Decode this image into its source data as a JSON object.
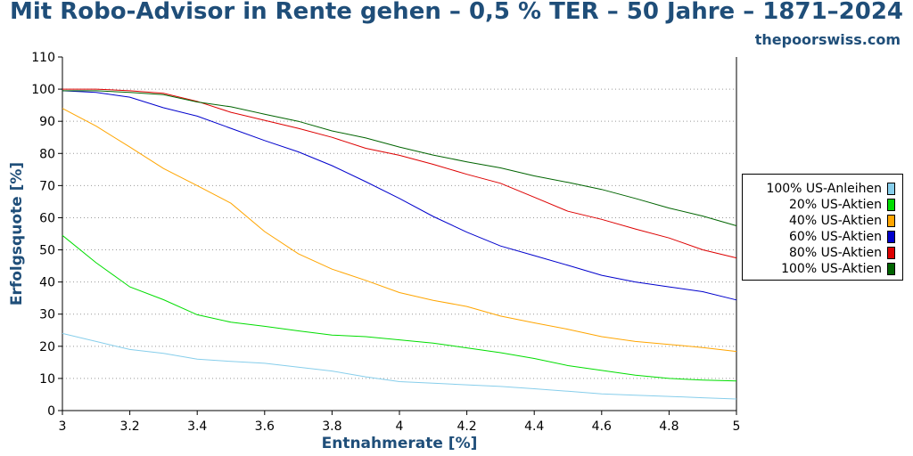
{
  "header": {
    "title": "Mit Robo-Advisor in Rente gehen – 0,5 % TER – 50 Jahre – 1871–2024",
    "site": "thepoorswiss.com"
  },
  "chart_data": {
    "type": "line",
    "title": "Mit Robo-Advisor in Rente gehen – 0,5 % TER – 50 Jahre – 1871–2024",
    "xlabel": "Entnahmerate [%]",
    "ylabel": "Erfolgsquote [%]",
    "xlim": [
      3,
      5
    ],
    "ylim": [
      0,
      110
    ],
    "grid": "horizontal-dotted",
    "legend_position": "right",
    "x_ticks": [
      "3",
      "3.2",
      "3.4",
      "3.6",
      "3.8",
      "4",
      "4.2",
      "4.4",
      "4.6",
      "4.8",
      "5"
    ],
    "y_ticks": [
      "0",
      "10",
      "20",
      "30",
      "40",
      "50",
      "60",
      "70",
      "80",
      "90",
      "100",
      "110"
    ],
    "x": [
      3.0,
      3.1,
      3.2,
      3.3,
      3.4,
      3.5,
      3.6,
      3.7,
      3.8,
      3.9,
      4.0,
      4.1,
      4.2,
      4.3,
      4.4,
      4.5,
      4.6,
      4.7,
      4.8,
      4.9,
      5.0
    ],
    "series": [
      {
        "name": "100% US-Anleihen",
        "color": "#87ceeb",
        "values": [
          24,
          21.5,
          19,
          17.8,
          16,
          15.3,
          14.7,
          13.5,
          12.3,
          10.5,
          9,
          8.5,
          8,
          7.5,
          6.8,
          6,
          5.2,
          4.8,
          4.4,
          4,
          3.6
        ]
      },
      {
        "name": "20% US-Aktien",
        "color": "#00dd00",
        "values": [
          54.5,
          46,
          38.5,
          34.5,
          29.8,
          27.5,
          26.2,
          24.8,
          23.5,
          23,
          22,
          21,
          19.5,
          18,
          16.2,
          14,
          12.5,
          11,
          10,
          9.5,
          9.2
        ]
      },
      {
        "name": "40% US-Aktien",
        "color": "#ffa500",
        "values": [
          94,
          88.5,
          82,
          75.3,
          70,
          64.5,
          55.7,
          48.8,
          44,
          40.5,
          36.7,
          34.3,
          32.4,
          29.4,
          27.3,
          25.3,
          23,
          21.5,
          20.6,
          19.6,
          18.4
        ]
      },
      {
        "name": "60% US-Aktien",
        "color": "#0000cc",
        "values": [
          99.5,
          99,
          97.5,
          94.2,
          91.6,
          87.8,
          84,
          80.5,
          76.2,
          71.2,
          66,
          60.4,
          55.5,
          51.2,
          48.2,
          45.2,
          42.1,
          40,
          38.5,
          37,
          34.4
        ]
      },
      {
        "name": "80% US-Aktien",
        "color": "#dd0000",
        "values": [
          100,
          100,
          99.5,
          98.7,
          96.2,
          92.8,
          90.3,
          87.8,
          85,
          81.6,
          79.4,
          76.6,
          73.5,
          70.7,
          66.4,
          62,
          59.5,
          56.5,
          53.7,
          50,
          47.5
        ]
      },
      {
        "name": "100% US-Aktien",
        "color": "#006400",
        "values": [
          99.5,
          99.5,
          99,
          98.3,
          96,
          94.5,
          92.2,
          90,
          87,
          84.8,
          82,
          79.5,
          77.4,
          75.5,
          73,
          71,
          68.8,
          66,
          63,
          60.5,
          57.5
        ]
      }
    ]
  }
}
